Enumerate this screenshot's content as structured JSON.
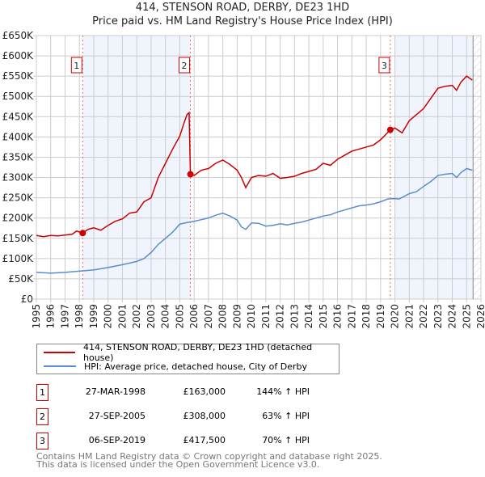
{
  "chart_data": {
    "type": "line",
    "title": "414, STENSON ROAD, DERBY, DE23 1HD",
    "subtitle": "Price paid vs. HM Land Registry's House Price Index (HPI)",
    "xlim": [
      1995,
      2026
    ],
    "ylim": [
      0,
      650000
    ],
    "x_ticks": [
      "1995",
      "1996",
      "1997",
      "1998",
      "1999",
      "2000",
      "2001",
      "2002",
      "2003",
      "2004",
      "2005",
      "2006",
      "2007",
      "2008",
      "2009",
      "2010",
      "2011",
      "2012",
      "2013",
      "2014",
      "2015",
      "2016",
      "2017",
      "2018",
      "2019",
      "2020",
      "2021",
      "2022",
      "2023",
      "2024",
      "2025",
      "2026"
    ],
    "y_ticks": [
      "£0",
      "£50K",
      "£100K",
      "£150K",
      "£200K",
      "£250K",
      "£300K",
      "£350K",
      "£400K",
      "£450K",
      "£500K",
      "£550K",
      "£600K",
      "£650K"
    ],
    "grid": true,
    "series": [
      {
        "name": "414, STENSON ROAD, DERBY, DE23 1HD (detached house)",
        "color": "#cc0000",
        "x": [
          1995,
          1995.5,
          1996,
          1996.5,
          1997,
          1997.5,
          1997.8,
          1998.23,
          1998.6,
          1999,
          1999.5,
          2000,
          2000.5,
          2001,
          2001.5,
          2002,
          2002.5,
          2003,
          2003.5,
          2004,
          2004.5,
          2005,
          2005.3,
          2005.5,
          2005.65,
          2005.74,
          2006,
          2006.5,
          2007,
          2007.5,
          2008,
          2008.5,
          2009,
          2009.3,
          2009.6,
          2010,
          2010.5,
          2011,
          2011.5,
          2012,
          2012.5,
          2013,
          2013.5,
          2014,
          2014.5,
          2015,
          2015.5,
          2016,
          2016.5,
          2017,
          2017.5,
          2018,
          2018.5,
          2019,
          2019.68,
          2020,
          2020.5,
          2021,
          2021.5,
          2022,
          2022.5,
          2023,
          2023.5,
          2024,
          2024.3,
          2024.6,
          2025,
          2025.4
        ],
        "y": [
          157,
          154,
          157,
          156,
          158,
          160,
          168,
          163,
          172,
          176,
          170,
          182,
          192,
          198,
          212,
          215,
          240,
          250,
          300,
          335,
          370,
          402,
          435,
          455,
          460,
          308,
          305,
          318,
          322,
          335,
          343,
          332,
          318,
          300,
          275,
          300,
          305,
          303,
          310,
          298,
          300,
          303,
          310,
          315,
          320,
          335,
          330,
          345,
          355,
          365,
          370,
          375,
          380,
          393,
          417.5,
          422,
          410,
          440,
          455,
          470,
          495,
          520,
          525,
          527,
          515,
          535,
          550,
          540
        ]
      },
      {
        "name": "HPI: Average price, detached house, City of Derby",
        "color": "#5b8bd0",
        "x": [
          1995,
          1996,
          1997,
          1998,
          1999,
          2000,
          2001,
          2002,
          2002.5,
          2003,
          2003.5,
          2004,
          2004.5,
          2005,
          2005.5,
          2006,
          2006.5,
          2007,
          2007.5,
          2008,
          2008.5,
          2009,
          2009.3,
          2009.6,
          2010,
          2010.5,
          2011,
          2011.5,
          2012,
          2012.5,
          2013,
          2013.5,
          2014,
          2014.5,
          2015,
          2015.5,
          2016,
          2016.5,
          2017,
          2017.5,
          2018,
          2018.5,
          2019,
          2019.5,
          2020,
          2020.3,
          2021,
          2021.5,
          2022,
          2022.5,
          2023,
          2023.5,
          2024,
          2024.3,
          2024.6,
          2025,
          2025.4
        ],
        "y": [
          66,
          64,
          66,
          69,
          72,
          78,
          85,
          93,
          100,
          115,
          135,
          150,
          165,
          185,
          189,
          192,
          196,
          200,
          207,
          212,
          205,
          195,
          178,
          172,
          188,
          187,
          180,
          182,
          186,
          183,
          187,
          190,
          195,
          200,
          205,
          208,
          215,
          220,
          225,
          230,
          232,
          235,
          240,
          247,
          248,
          247,
          260,
          265,
          278,
          290,
          305,
          308,
          310,
          300,
          312,
          322,
          318
        ]
      }
    ],
    "sales": [
      {
        "label": "1",
        "x": 1998.23,
        "y": 163,
        "date": "27-MAR-1998",
        "price": "£163,000",
        "hpi": "144% ↑ HPI"
      },
      {
        "label": "2",
        "x": 2005.74,
        "y": 308,
        "date": "27-SEP-2005",
        "price": "£308,000",
        "hpi": "63% ↑ HPI"
      },
      {
        "label": "3",
        "x": 2019.68,
        "y": 417.5,
        "date": "06-SEP-2019",
        "price": "£417,500",
        "hpi": "70% ↑ HPI"
      }
    ],
    "shaded_ranges": [
      [
        1998.23,
        2005.74
      ],
      [
        2020,
        2025.45
      ]
    ],
    "forecast_from": 2025.45
  },
  "legend": {
    "red": "414, STENSON ROAD, DERBY, DE23 1HD (detached house)",
    "blue": "HPI: Average price, detached house, City of Derby"
  },
  "footer": {
    "line1": "Contains HM Land Registry data © Crown copyright and database right 2025.",
    "line2": "This data is licensed under the Open Government Licence v3.0."
  }
}
